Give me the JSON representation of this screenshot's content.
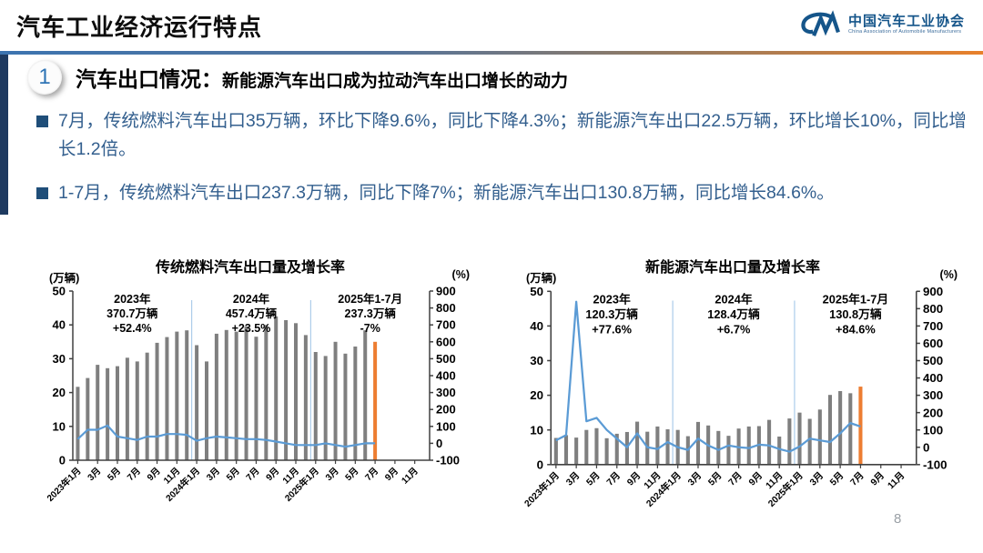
{
  "header": {
    "title": "汽车工业经济运行特点",
    "logo": {
      "mark": "CM-swoosh",
      "name_cn": "中国汽车工业协会",
      "name_en": "China Association of Automobile Manufacturers",
      "color": "#15558A"
    }
  },
  "section": {
    "number": "1",
    "title": "汽车出口情况：",
    "subtitle": "新能源汽车出口成为拉动汽车出口增长的动力"
  },
  "bullets": [
    {
      "text": "7月，传统燃料汽车出口35万辆，环比下降9.6%，同比下降4.3%；新能源汽车出口22.5万辆，环比增长10%，同比增长1.2倍。"
    },
    {
      "text": "1-7月，传统燃料汽车出口237.3万辆，同比下降7%；新能源汽车出口130.8万辆，同比增长84.6%。"
    }
  ],
  "page_number": "8",
  "colors": {
    "accent_blue": "#2E74B5",
    "text_blue": "#335F8E",
    "navy": "#1F4E79",
    "rule_gradient_left": "#3C74B0",
    "rule_gradient_right": "#E8802B"
  },
  "chart_data": [
    {
      "type": "bar",
      "overlay": "line",
      "title": "传统燃料汽车出口量及增长率",
      "left_axis": {
        "label": "(万辆)",
        "min": 0,
        "max": 50,
        "ticks": [
          0,
          10,
          20,
          30,
          40,
          50
        ]
      },
      "right_axis": {
        "label": "(%)",
        "min": -100,
        "max": 900,
        "ticks": [
          -100,
          0,
          100,
          200,
          300,
          400,
          500,
          600,
          700,
          800,
          900
        ]
      },
      "months_total": 36,
      "x_tick_labels": [
        "2023年1月",
        "3月",
        "5月",
        "7月",
        "9月",
        "11月",
        "2024年1月",
        "3月",
        "5月",
        "7月",
        "9月",
        "11月",
        "2025年1月",
        "3月",
        "5月",
        "7月",
        "9月",
        "11月"
      ],
      "bar_values": [
        21.7,
        24.3,
        28.2,
        27.2,
        27.8,
        30.3,
        29.2,
        31.8,
        34.7,
        36.4,
        38.0,
        38.4,
        34.0,
        29.2,
        37.4,
        38.5,
        38.0,
        39.5,
        36.5,
        40.0,
        42.5,
        41.4,
        40.5,
        37.0,
        32.0,
        30.8,
        35.0,
        31.5,
        33.6,
        38.4,
        35.0
      ],
      "line_values": [
        25,
        80,
        80,
        105,
        40,
        30,
        20,
        40,
        40,
        55,
        55,
        50,
        15,
        30,
        40,
        35,
        30,
        25,
        25,
        20,
        10,
        0,
        -10,
        -10,
        -10,
        0,
        -10,
        -20,
        -10,
        0,
        0
      ],
      "bar_color": "#7F7F7F",
      "last_bar_color": "#ED7D31",
      "line_color": "#5B9BD5",
      "separator_color": "#9DC3E6",
      "separators_after_index": [
        11,
        23
      ],
      "annotations": [
        {
          "lines": [
            {
              "text": "2023年"
            },
            {
              "text": "370.7万辆"
            },
            {
              "text": "+52.4%"
            }
          ]
        },
        {
          "lines": [
            {
              "text": "2024年"
            },
            {
              "text": "457.4万辆"
            },
            {
              "text": "+23.5%"
            }
          ]
        },
        {
          "lines": [
            {
              "text": "2025年1-7月"
            },
            {
              "text": "237.3万辆"
            },
            {
              "text": "-7%",
              "color": "#E8201E"
            }
          ]
        }
      ]
    },
    {
      "type": "bar",
      "overlay": "line",
      "title": "新能源汽车出口量及增长率",
      "left_axis": {
        "label": "(万辆)",
        "min": 0,
        "max": 50,
        "ticks": [
          0,
          10,
          20,
          30,
          40,
          50
        ]
      },
      "right_axis": {
        "label": "(%)",
        "min": -100,
        "max": 900,
        "ticks": [
          -100,
          0,
          100,
          200,
          300,
          400,
          500,
          600,
          700,
          800,
          900
        ]
      },
      "months_total": 36,
      "x_tick_labels": [
        "2023年1月",
        "3月",
        "5月",
        "7月",
        "9月",
        "11月",
        "2024年1月",
        "3月",
        "5月",
        "7月",
        "9月",
        "11月",
        "2025年1月",
        "3月",
        "5月",
        "7月",
        "9月",
        "11月"
      ],
      "bar_values": [
        7.7,
        8.5,
        7.8,
        10.0,
        10.5,
        7.6,
        8.9,
        9.4,
        12.4,
        9.5,
        11.0,
        10.2,
        10.0,
        8.2,
        12.3,
        11.3,
        9.7,
        8.3,
        10.4,
        11.0,
        11.1,
        12.9,
        8.1,
        13.3,
        15.0,
        13.2,
        15.9,
        20.1,
        21.2,
        20.6,
        22.5
      ],
      "line_values": [
        40,
        70,
        840,
        150,
        170,
        100,
        50,
        0,
        80,
        0,
        -10,
        30,
        0,
        -15,
        50,
        10,
        -15,
        10,
        0,
        -5,
        15,
        10,
        -10,
        -25,
        5,
        50,
        40,
        30,
        80,
        140,
        120
      ],
      "bar_color": "#7F7F7F",
      "last_bar_color": "#ED7D31",
      "line_color": "#5B9BD5",
      "separator_color": "#9DC3E6",
      "separators_after_index": [
        11,
        23
      ],
      "annotations": [
        {
          "lines": [
            {
              "text": "2023年"
            },
            {
              "text": "120.3万辆"
            },
            {
              "text": "+77.6%"
            }
          ]
        },
        {
          "lines": [
            {
              "text": "2024年"
            },
            {
              "text": "128.4万辆"
            },
            {
              "text": "+6.7%"
            }
          ]
        },
        {
          "lines": [
            {
              "text": "2025年1-7月"
            },
            {
              "text": "130.8万辆"
            },
            {
              "text": "+84.6%"
            }
          ]
        }
      ]
    }
  ]
}
